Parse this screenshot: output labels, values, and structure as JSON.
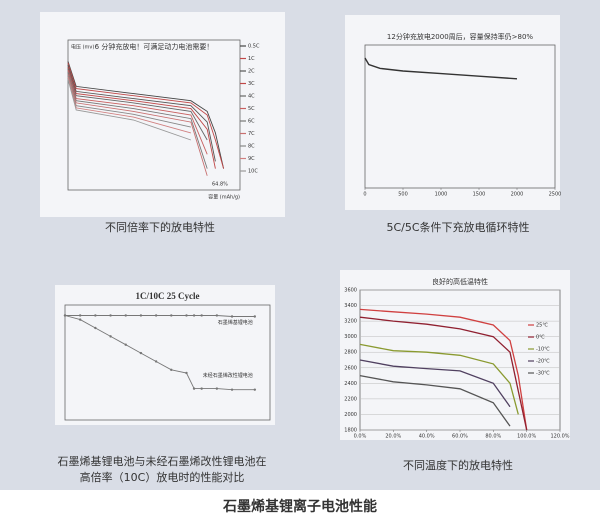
{
  "chart_data": [
    {
      "type": "line",
      "title": "6 分钟充放电！可满足动力电池需要！",
      "y_label": "电压 (mv)",
      "x_label": "容量 (mAh/g)",
      "annotation": "64.8%",
      "caption": "不同倍率下的放电特性",
      "x": [
        0,
        5,
        40,
        75,
        85,
        90,
        95
      ],
      "xlim": [
        0,
        105
      ],
      "ylim": [
        2.5,
        4.6
      ],
      "series": [
        {
          "name": "0.5C",
          "color": "#444444",
          "values": [
            4.3,
            3.95,
            3.85,
            3.75,
            3.6,
            3.3,
            2.8
          ]
        },
        {
          "name": "1C",
          "color": "#c04848",
          "values": [
            4.28,
            3.92,
            3.82,
            3.72,
            3.55,
            3.2,
            2.8
          ]
        },
        {
          "name": "2C",
          "color": "#555555",
          "values": [
            4.25,
            3.88,
            3.78,
            3.68,
            3.45,
            2.9,
            null
          ]
        },
        {
          "name": "3C",
          "color": "#c04848",
          "values": [
            4.22,
            3.85,
            3.75,
            3.64,
            3.35,
            2.8,
            null
          ]
        },
        {
          "name": "4C",
          "color": "#666666",
          "values": [
            4.2,
            3.82,
            3.72,
            3.6,
            3.2,
            null,
            null
          ]
        },
        {
          "name": "5C",
          "color": "#c86060",
          "values": [
            4.18,
            3.78,
            3.68,
            3.55,
            3.0,
            null,
            null
          ]
        },
        {
          "name": "6C",
          "color": "#777777",
          "values": [
            4.15,
            3.75,
            3.64,
            3.5,
            2.8,
            null,
            null
          ]
        },
        {
          "name": "7C",
          "color": "#c87070",
          "values": [
            4.12,
            3.72,
            3.6,
            3.45,
            2.7,
            null,
            null
          ]
        },
        {
          "name": "8C",
          "color": "#888888",
          "values": [
            4.1,
            3.68,
            3.56,
            3.38,
            null,
            null,
            null
          ]
        },
        {
          "name": "9C",
          "color": "#d08080",
          "values": [
            4.08,
            3.65,
            3.52,
            3.3,
            null,
            null,
            null
          ]
        },
        {
          "name": "10C",
          "color": "#999999",
          "values": [
            4.05,
            3.62,
            3.48,
            3.2,
            null,
            null,
            null
          ]
        }
      ]
    },
    {
      "type": "line",
      "title": "12分钟充放电2000周后，容量保持率仍>80%",
      "caption": "5C/5C条件下充放电循环特性",
      "x": [
        0,
        50,
        200,
        500,
        1000,
        1500,
        2000
      ],
      "values": [
        1.0,
        0.95,
        0.92,
        0.9,
        0.88,
        0.86,
        0.84
      ],
      "color": "#333333",
      "xlim": [
        0,
        2500
      ],
      "xticks": [
        0,
        500,
        1000,
        1500,
        2000,
        2500
      ],
      "ylim": [
        0,
        1.1
      ]
    },
    {
      "type": "line",
      "title": "1C/10C 25 Cycle",
      "caption": "石墨烯基锂电池与未经石墨烯改性锂电池在\n高倍率（10C）放电时的性能对比",
      "x": [
        0,
        2,
        4,
        6,
        8,
        10,
        12,
        14,
        16,
        17,
        18,
        20,
        22,
        25
      ],
      "xlim": [
        0,
        27
      ],
      "ylim": [
        0,
        110
      ],
      "series": [
        {
          "name": "石墨烯基锂电池",
          "color": "#777777",
          "values": [
            100,
            100,
            100,
            100,
            100,
            100,
            100,
            100,
            100,
            100,
            100,
            100,
            99,
            99
          ]
        },
        {
          "name": "未经石墨烯改性锂电池",
          "color": "#777777",
          "values": [
            100,
            96,
            88,
            80,
            72,
            64,
            56,
            48,
            45,
            30,
            30,
            30,
            29,
            29
          ]
        }
      ]
    },
    {
      "type": "line",
      "title": "良好的高低温特性",
      "caption": "不同温度下的放电特性",
      "x": [
        0,
        20,
        40,
        60,
        80,
        90,
        95,
        100
      ],
      "xlim": [
        0,
        120
      ],
      "xticks": [
        {
          "value": 0,
          "label": "0.0%"
        },
        {
          "value": 20,
          "label": "20.0%"
        },
        {
          "value": 40,
          "label": "40.0%"
        },
        {
          "value": 60,
          "label": "60.0%"
        },
        {
          "value": 80,
          "label": "80.0%"
        },
        {
          "value": 100,
          "label": "100.0%"
        },
        {
          "value": 120,
          "label": "120.0%"
        }
      ],
      "ylim": [
        1800,
        3600
      ],
      "yticks": [
        1800,
        2000,
        2200,
        2400,
        2600,
        2800,
        3000,
        3200,
        3400,
        3600
      ],
      "grid": true,
      "series": [
        {
          "name": "25℃",
          "color": "#d04040",
          "values": [
            3350,
            3320,
            3290,
            3250,
            3150,
            2950,
            2500,
            1800
          ]
        },
        {
          "name": "0℃",
          "color": "#902030",
          "values": [
            3250,
            3200,
            3160,
            3100,
            3000,
            2800,
            2300,
            1800
          ]
        },
        {
          "name": "-10℃",
          "color": "#8a9a30",
          "values": [
            2900,
            2820,
            2800,
            2760,
            2650,
            2400,
            2000,
            null
          ]
        },
        {
          "name": "-20℃",
          "color": "#504060",
          "values": [
            2700,
            2620,
            2590,
            2560,
            2400,
            2100,
            null,
            null
          ]
        },
        {
          "name": "-30℃",
          "color": "#555555",
          "values": [
            2500,
            2420,
            2380,
            2330,
            2150,
            1850,
            null,
            null
          ]
        }
      ]
    }
  ],
  "caption": "石墨烯基锂离子电池性能"
}
